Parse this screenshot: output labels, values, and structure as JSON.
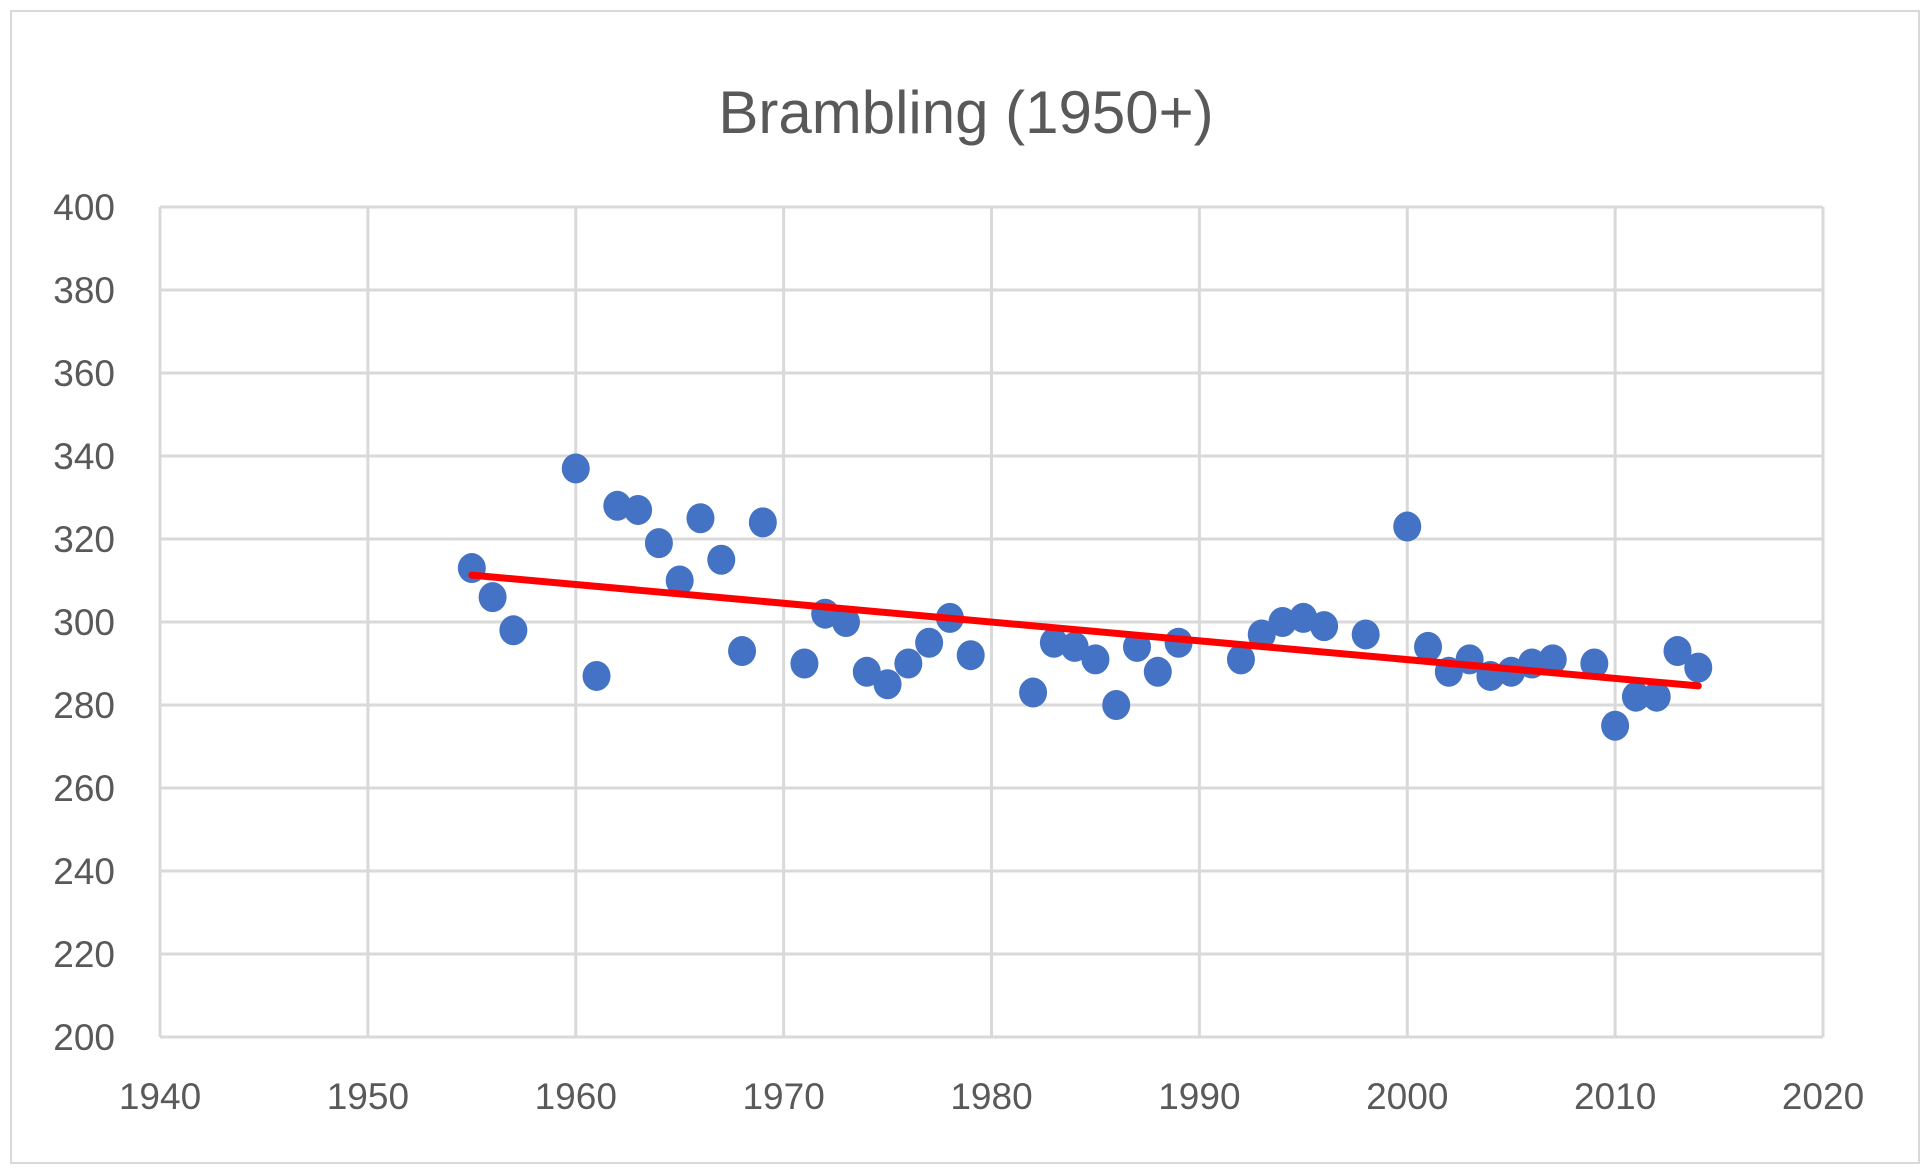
{
  "chart_data": {
    "type": "scatter",
    "title": "Brambling (1950+)",
    "xlabel": "",
    "ylabel": "",
    "xlim": [
      1940,
      2020
    ],
    "ylim": [
      200,
      400
    ],
    "xticks": [
      1940,
      1950,
      1960,
      1970,
      1980,
      1990,
      2000,
      2010,
      2020
    ],
    "yticks": [
      200,
      220,
      240,
      260,
      280,
      300,
      320,
      340,
      360,
      380,
      400
    ],
    "grid": true,
    "legend": "none",
    "series": [
      {
        "name": "Brambling",
        "color": "#4472C4",
        "x": [
          1955,
          1956,
          1957,
          1960,
          1961,
          1962,
          1963,
          1964,
          1965,
          1966,
          1967,
          1968,
          1969,
          1971,
          1972,
          1973,
          1974,
          1975,
          1976,
          1977,
          1978,
          1979,
          1982,
          1983,
          1984,
          1985,
          1986,
          1987,
          1988,
          1989,
          1992,
          1993,
          1994,
          1995,
          1996,
          1998,
          2000,
          2001,
          2002,
          2003,
          2004,
          2005,
          2006,
          2007,
          2009,
          2010,
          2011,
          2012,
          2013,
          2014
        ],
        "y": [
          313,
          306,
          298,
          337,
          287,
          328,
          327,
          319,
          310,
          325,
          315,
          293,
          324,
          290,
          302,
          300,
          288,
          285,
          290,
          295,
          301,
          292,
          283,
          295,
          294,
          291,
          280,
          294,
          288,
          295,
          291,
          297,
          300,
          301,
          299,
          297,
          323,
          294,
          288,
          291,
          287,
          288,
          290,
          291,
          290,
          275,
          282,
          282,
          293,
          289
        ]
      }
    ],
    "trendline": {
      "type": "linear",
      "color": "#FF0000",
      "x": [
        1955,
        2014
      ],
      "y": [
        311.3,
        284.6
      ]
    }
  }
}
